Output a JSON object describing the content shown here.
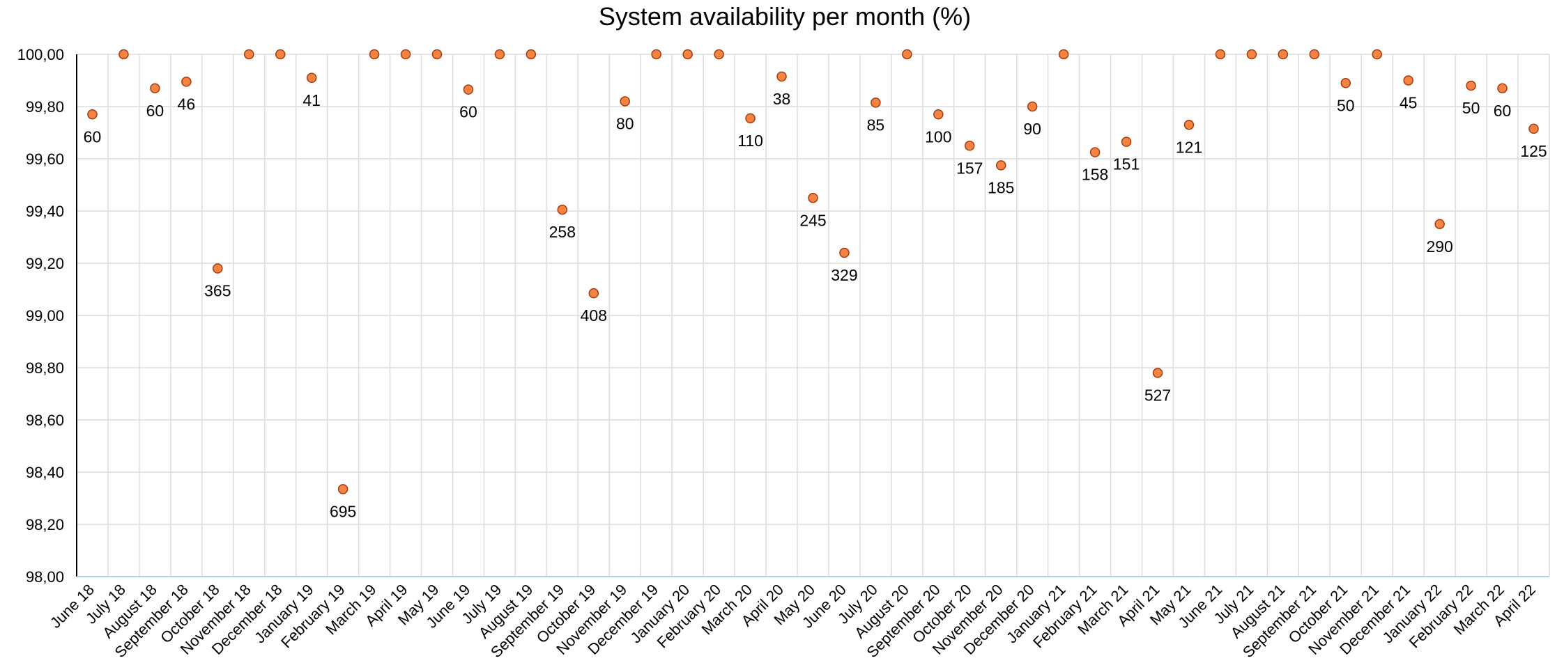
{
  "chart_data": {
    "type": "scatter",
    "title": "System availability per month (%)",
    "xlabel": "",
    "ylabel": "",
    "ylim": [
      98.0,
      100.0
    ],
    "y_tick_step": 0.2,
    "y_tick_labels": [
      "98,00",
      "98,20",
      "98,40",
      "98,60",
      "98,80",
      "99,00",
      "99,20",
      "99,40",
      "99,60",
      "99,80",
      "100,00"
    ],
    "grid": true,
    "legend": "none",
    "colors": {
      "marker_fill": "#f58442",
      "marker_stroke": "#a33a10",
      "grid": "#dcdcdc",
      "axis": "#000000",
      "x_axis": "#a9d4dc"
    },
    "categories": [
      "June 18",
      "July 18",
      "August 18",
      "September 18",
      "October 18",
      "November 18",
      "December 18",
      "January 19",
      "February 19",
      "March 19",
      "April 19",
      "May 19",
      "June 19",
      "July 19",
      "August 19",
      "September 19",
      "October 19",
      "November 19",
      "December 19",
      "January 20",
      "February 20",
      "March 20",
      "April 20",
      "May 20",
      "June 20",
      "July 20",
      "August 20",
      "September 20",
      "October 20",
      "November 20",
      "December 20",
      "January 21",
      "February 21",
      "March 21",
      "April 21",
      "May 21",
      "June 21",
      "July 21",
      "August 21",
      "September 21",
      "October 21",
      "November 21",
      "December 21",
      "January 22",
      "February 22",
      "March 22",
      "April 22"
    ],
    "values": [
      99.77,
      100.0,
      99.87,
      99.895,
      99.18,
      100.0,
      100.0,
      99.91,
      98.335,
      100.0,
      100.0,
      100.0,
      99.865,
      100.0,
      100.0,
      99.405,
      99.085,
      99.82,
      100.0,
      100.0,
      100.0,
      99.755,
      99.915,
      99.45,
      99.24,
      99.815,
      100.0,
      99.77,
      99.65,
      99.575,
      99.8,
      100.0,
      99.625,
      99.665,
      98.78,
      99.73,
      100.0,
      100.0,
      100.0,
      100.0,
      99.89,
      100.0,
      99.9,
      99.35,
      99.88,
      99.87,
      99.715
    ],
    "data_labels": [
      "60",
      "",
      "60",
      "46",
      "365",
      "",
      "",
      "41",
      "695",
      "",
      "",
      "",
      "60",
      "",
      "",
      "258",
      "408",
      "80",
      "",
      "",
      "",
      "110",
      "38",
      "245",
      "329",
      "85",
      "",
      "100",
      "157",
      "185",
      "90",
      "",
      "158",
      "151",
      "527",
      "121",
      "",
      "",
      "",
      "",
      "50",
      "",
      "45",
      "290",
      "50",
      "60",
      "125"
    ]
  }
}
